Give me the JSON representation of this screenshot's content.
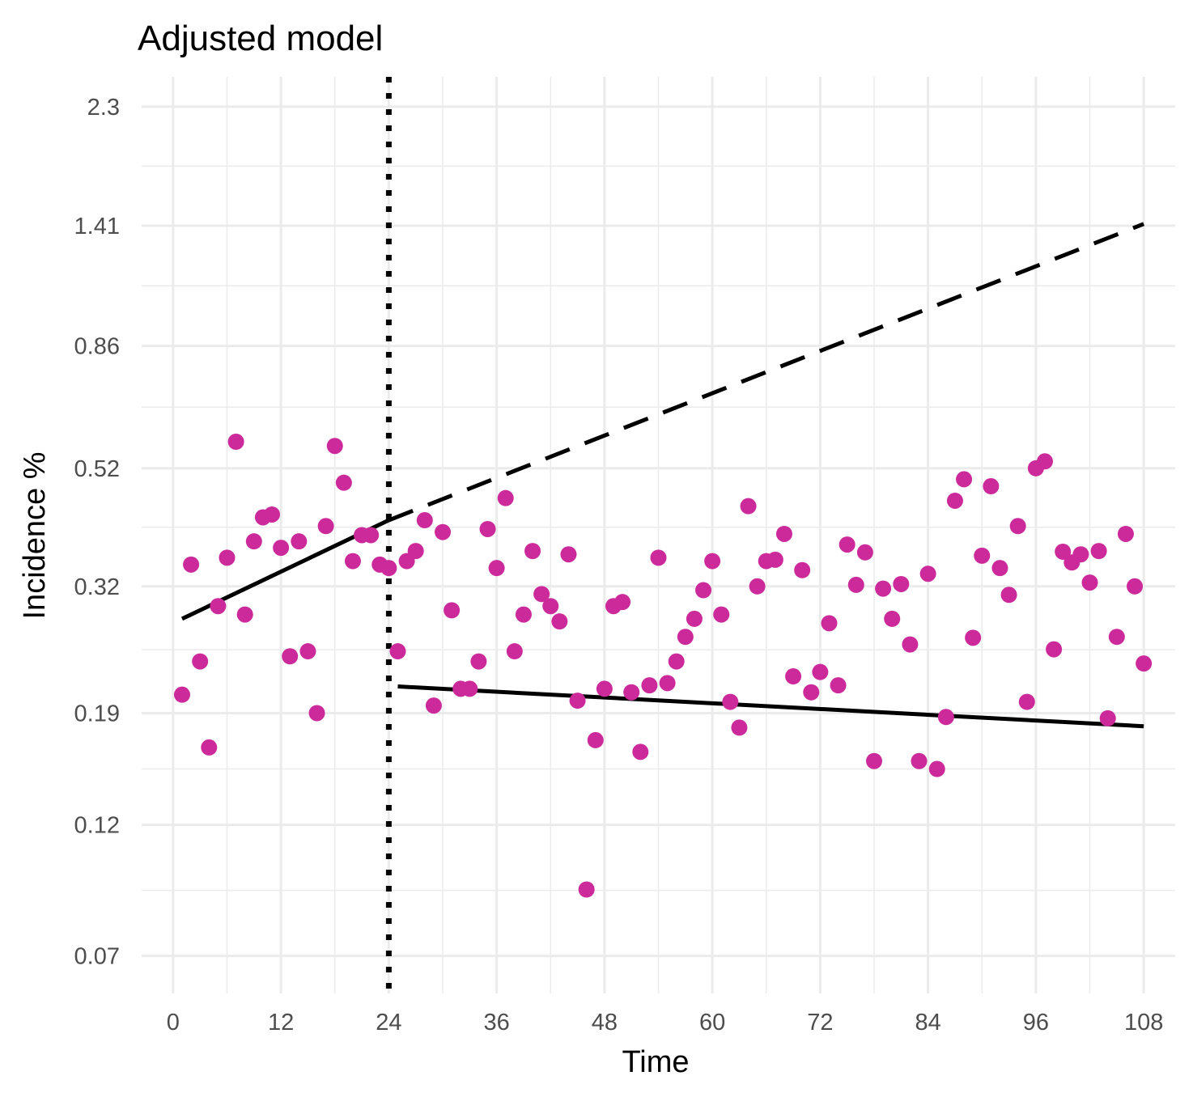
{
  "chart_data": {
    "type": "scatter",
    "title": "Adjusted model",
    "xlabel": "Time",
    "ylabel": "Incidence %",
    "x_ticks": [
      0,
      12,
      24,
      36,
      48,
      60,
      72,
      84,
      96,
      108
    ],
    "x_tick_labels": [
      "0",
      "12",
      "24",
      "36",
      "48",
      "60",
      "72",
      "84",
      "96",
      "108"
    ],
    "y_scale": "log",
    "y_ticks": [
      0.07,
      0.12,
      0.19,
      0.32,
      0.52,
      0.86,
      1.41,
      2.3
    ],
    "y_tick_labels": [
      "0.07",
      "0.12",
      "0.19",
      "0.32",
      "0.52",
      "0.86",
      "1.41",
      "2.3"
    ],
    "xlim": [
      -3.5,
      111.5
    ],
    "ylim": [
      0.06,
      2.6
    ],
    "grid": true,
    "colors": {
      "points": "#cc2a9b",
      "lines": "#000000",
      "grid": "#ebebeb"
    },
    "intervention_line": {
      "x": 24,
      "style": "dotted"
    },
    "fitted_lines": [
      {
        "style": "solid",
        "x": [
          1,
          24
        ],
        "y": [
          0.28,
          0.42
        ]
      },
      {
        "style": "dashed",
        "x": [
          24,
          108
        ],
        "y": [
          0.42,
          1.42
        ]
      },
      {
        "style": "solid",
        "x": [
          25,
          108
        ],
        "y": [
          0.212,
          0.18
        ]
      }
    ],
    "points": {
      "x": [
        1,
        2,
        3,
        4,
        5,
        6,
        7,
        8,
        9,
        10,
        11,
        12,
        13,
        14,
        15,
        16,
        17,
        18,
        19,
        20,
        21,
        22,
        23,
        24,
        25,
        26,
        27,
        28,
        29,
        30,
        31,
        32,
        33,
        34,
        35,
        36,
        37,
        38,
        39,
        40,
        41,
        42,
        43,
        44,
        45,
        46,
        47,
        48,
        49,
        50,
        51,
        52,
        53,
        54,
        55,
        56,
        57,
        58,
        59,
        60,
        61,
        62,
        63,
        64,
        65,
        66,
        67,
        68,
        69,
        70,
        71,
        72,
        73,
        74,
        75,
        76,
        77,
        78,
        79,
        80,
        81,
        82,
        83,
        84,
        85,
        86,
        87,
        88,
        89,
        90,
        91,
        92,
        93,
        94,
        95,
        96,
        97,
        98,
        99,
        100,
        101,
        102,
        103,
        104,
        105,
        106,
        107,
        108
      ],
      "y": [
        0.205,
        0.35,
        0.235,
        0.165,
        0.295,
        0.36,
        0.58,
        0.285,
        0.385,
        0.425,
        0.43,
        0.375,
        0.24,
        0.385,
        0.245,
        0.19,
        0.41,
        0.57,
        0.49,
        0.355,
        0.395,
        0.395,
        0.35,
        0.345,
        0.245,
        0.355,
        0.37,
        0.42,
        0.196,
        0.4,
        0.29,
        0.21,
        0.21,
        0.235,
        0.405,
        0.345,
        0.46,
        0.245,
        0.285,
        0.37,
        0.31,
        0.295,
        0.277,
        0.365,
        0.2,
        0.092,
        0.17,
        0.21,
        0.295,
        0.3,
        0.207,
        0.162,
        0.213,
        0.36,
        0.215,
        0.235,
        0.26,
        0.28,
        0.315,
        0.355,
        0.285,
        0.199,
        0.179,
        0.445,
        0.32,
        0.355,
        0.357,
        0.397,
        0.221,
        0.342,
        0.207,
        0.225,
        0.275,
        0.213,
        0.38,
        0.322,
        0.368,
        0.156,
        0.317,
        0.28,
        0.323,
        0.252,
        0.156,
        0.337,
        0.151,
        0.187,
        0.455,
        0.497,
        0.259,
        0.363,
        0.483,
        0.345,
        0.309,
        0.41,
        0.199,
        0.52,
        0.535,
        0.247,
        0.369,
        0.353,
        0.365,
        0.325,
        0.37,
        0.186,
        0.26,
        0.397,
        0.32,
        0.233
      ]
    }
  }
}
